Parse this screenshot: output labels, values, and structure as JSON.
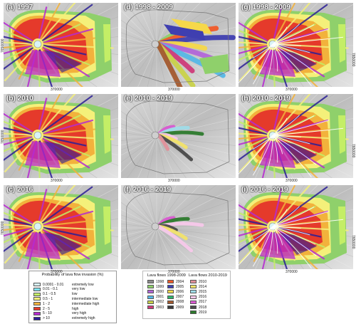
{
  "panels": [
    {
      "label": "(a) 1997",
      "type": "prob",
      "x_tick": "370000",
      "y_tick": "7650000"
    },
    {
      "label": "(d) 1998 - 2009",
      "type": "flows9809",
      "x_tick": "370000",
      "y_tick": ""
    },
    {
      "label": "(g) 1998 - 2009",
      "type": "prob_overlay",
      "x_tick": "370000",
      "y_tick": "7650000"
    },
    {
      "label": "(b) 2010",
      "type": "prob",
      "x_tick": "370000",
      "y_tick": "7650000"
    },
    {
      "label": "(e) 2010 - 2019",
      "type": "flows1019",
      "x_tick": "370000",
      "y_tick": ""
    },
    {
      "label": "(h) 2010 - 2019",
      "type": "prob_overlay",
      "x_tick": "370000",
      "y_tick": "7650000"
    },
    {
      "label": "(c) 2016",
      "type": "prob",
      "x_tick": "370000",
      "y_tick": "7650000"
    },
    {
      "label": "(f) 2016 - 2019",
      "type": "flows1619",
      "x_tick": "370000",
      "y_tick": ""
    },
    {
      "label": "(i) 2016 - 2019",
      "type": "prob_overlay",
      "x_tick": "370000",
      "y_tick": "7650000"
    }
  ],
  "bottom_ticks": [
    "370000",
    "370000",
    "370000"
  ],
  "probability_legend": {
    "title": "Probability of lava flow invasion (%)",
    "classes": [
      {
        "range": "0.0001 - 0.01",
        "label": "extremely low",
        "color": "#d9f3f7"
      },
      {
        "range": "0.01 - 0.1",
        "label": "very low",
        "color": "#7fe3ee"
      },
      {
        "range": "0.1 - 0.5",
        "label": "low",
        "color": "#c4ee66"
      },
      {
        "range": "0.5 - 1",
        "label": "intermediate low",
        "color": "#f4f07a"
      },
      {
        "range": "1 - 2",
        "label": "intermediate high",
        "color": "#f2b23c"
      },
      {
        "range": "2 - 5",
        "label": "high",
        "color": "#e53a2b"
      },
      {
        "range": "5 - 10",
        "label": "very high",
        "color": "#b52bd0"
      },
      {
        "range": "> 10",
        "label": "extremely high",
        "color": "#2b1f96"
      }
    ]
  },
  "flows_legend": {
    "title_a": "Lava flows 1998-2009",
    "title_b": "Lava flows 2010-2019",
    "col1": [
      {
        "year": "1998",
        "color": "#8c8c8c"
      },
      {
        "year": "1999",
        "color": "#8fd06b"
      },
      {
        "year": "2000",
        "color": "#b266d8"
      },
      {
        "year": "2001",
        "color": "#56b7e6"
      },
      {
        "year": "2002",
        "color": "#c9d24a"
      },
      {
        "year": "2003",
        "color": "#cf3b7a"
      }
    ],
    "col2": [
      {
        "year": "2004",
        "color": "#f05a28"
      },
      {
        "year": "2005",
        "color": "#3f3fb0"
      },
      {
        "year": "2006",
        "color": "#f6d84a"
      },
      {
        "year": "2007",
        "color": "#2fb36c"
      },
      {
        "year": "2008",
        "color": "#a35a2e"
      },
      {
        "year": "2009",
        "color": "#3a3a3a"
      }
    ],
    "col3": [
      {
        "year": "2010",
        "color": "#e0909a"
      },
      {
        "year": "2014",
        "color": "#f2e36a"
      },
      {
        "year": "2015",
        "color": "#9fdce8"
      },
      {
        "year": "2016",
        "color": "#f7c8ea"
      },
      {
        "year": "2017",
        "color": "#d85ad0"
      },
      {
        "year": "2018",
        "color": "#4a4a4a"
      },
      {
        "year": "2019",
        "color": "#2d7a2d"
      }
    ]
  }
}
